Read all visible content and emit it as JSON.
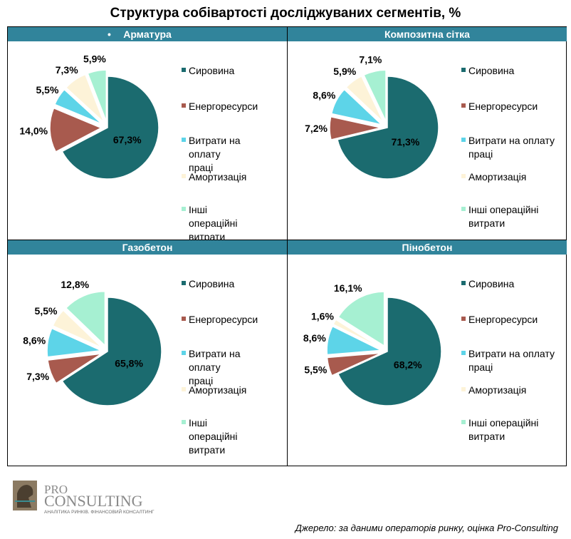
{
  "title": "Структура собівартості досліджуваних сегментів, %",
  "colors": [
    "#1b6b6f",
    "#a85a4e",
    "#5dd4e8",
    "#fdf3d8",
    "#a6f0d2"
  ],
  "legend": [
    "Сировина",
    "Енергоресурси",
    "Витрати на оплату праці",
    "Амортизація",
    "Інші операційні витрати"
  ],
  "chart_data": [
    {
      "type": "pie",
      "title": "Арматура",
      "title_bullet": "•",
      "categories": [
        "Сировина",
        "Енергоресурси",
        "Витрати на оплату праці",
        "Амортизація",
        "Інші операційні витрати"
      ],
      "values": [
        67.3,
        14.0,
        5.5,
        7.3,
        5.9
      ],
      "labels": [
        "67,3%",
        "14,0%",
        "5,5%",
        "7,3%",
        "5,9%"
      ]
    },
    {
      "type": "pie",
      "title": "Композитна  сітка",
      "categories": [
        "Сировина",
        "Енергоресурси",
        "Витрати на оплату праці",
        "Амортизація",
        "Інші операційні витрати"
      ],
      "values": [
        71.3,
        7.2,
        8.6,
        5.9,
        7.1
      ],
      "labels": [
        "71,3%",
        "7,2%",
        "8,6%",
        "5,9%",
        "7,1%"
      ]
    },
    {
      "type": "pie",
      "title": "Газобетон",
      "categories": [
        "Сировина",
        "Енергоресурси",
        "Витрати на оплату праці",
        "Амортизація",
        "Інші операційні витрати"
      ],
      "values": [
        65.8,
        7.3,
        8.6,
        5.5,
        12.8
      ],
      "labels": [
        "65,8%",
        "7,3%",
        "8,6%",
        "5,5%",
        "12,8%"
      ]
    },
    {
      "type": "pie",
      "title": "Пінобетон",
      "categories": [
        "Сировина",
        "Енергоресурси",
        "Витрати на оплату праці",
        "Амортизація",
        "Інші операційні витрати"
      ],
      "values": [
        68.2,
        5.5,
        8.6,
        1.6,
        16.1
      ],
      "labels": [
        "68,2%",
        "5,5%",
        "8,6%",
        "1,6%",
        "16,1%"
      ]
    }
  ],
  "logo": {
    "pro": "PRO",
    "consulting": "CONSULTING",
    "tagline": "АНАЛІТИКА РИНКІВ. ФІНАНСОВИЙ КОНСАЛТИНГ"
  },
  "source": "Джерело: за даними операторів ринку, оцінка Pro-Consulting"
}
